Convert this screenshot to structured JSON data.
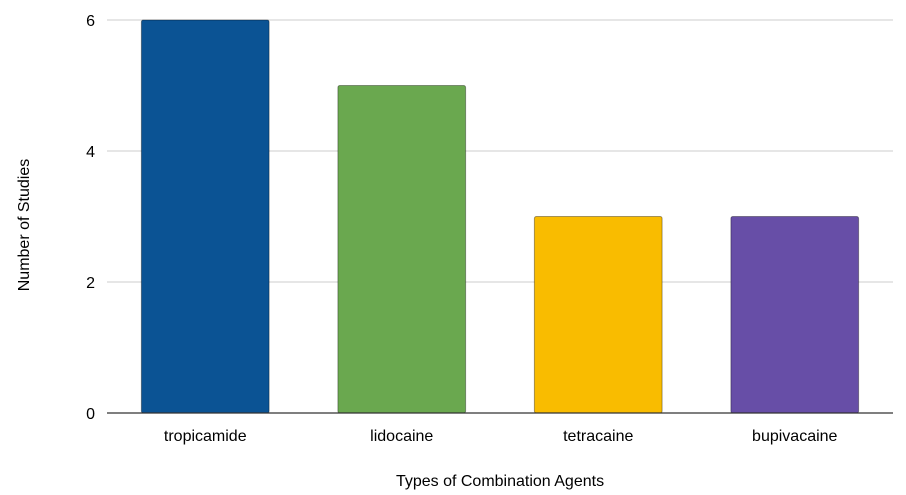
{
  "chart_data": {
    "type": "bar",
    "categories": [
      "tropicamide",
      "lidocaine",
      "tetracaine",
      "bupivacaine"
    ],
    "values": [
      6,
      5,
      3,
      3
    ],
    "colors": [
      "#0b5394",
      "#6aa84f",
      "#f9bc00",
      "#674ea7"
    ],
    "xlabel": "Types of Combination Agents",
    "ylabel": "Number of Studies",
    "ylim": [
      0,
      6
    ],
    "yticks": [
      0,
      2,
      4,
      6
    ],
    "grid": true,
    "legend": "none"
  }
}
